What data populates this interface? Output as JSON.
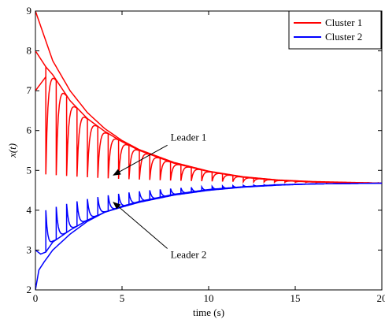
{
  "chart_data": {
    "type": "line",
    "xlabel": "time (s)",
    "ylabel": "x(t)",
    "xlim": [
      0,
      20
    ],
    "ylim": [
      2,
      9
    ],
    "xticks": [
      0,
      5,
      10,
      15,
      20
    ],
    "xtick_labels": [
      "0",
      "5",
      "10",
      "15",
      "20"
    ],
    "yticks": [
      2,
      3,
      4,
      5,
      6,
      7,
      8,
      9
    ],
    "ytick_labels": [
      "2",
      "3",
      "4",
      "5",
      "6",
      "7",
      "8",
      "9"
    ],
    "grid": false,
    "legend_position": "top-right",
    "series": [
      {
        "name": "Cluster 1",
        "color": "#ff0000"
      },
      {
        "name": "Cluster 2",
        "color": "#0000ff"
      }
    ],
    "consensus_value": 4.68,
    "reset_period": 0.6,
    "cluster1_envelopes": [
      {
        "x": [
          0,
          1,
          2,
          3,
          4,
          5,
          6,
          8,
          10,
          12,
          14,
          16,
          20
        ],
        "y": [
          9.0,
          7.75,
          7.0,
          6.45,
          6.05,
          5.75,
          5.52,
          5.2,
          4.98,
          4.84,
          4.76,
          4.72,
          4.68
        ]
      },
      {
        "x": [
          0,
          0.6,
          1,
          2,
          3,
          4,
          5,
          6,
          8,
          10,
          12,
          14,
          16,
          20
        ],
        "y": [
          8.0,
          7.6,
          7.4,
          6.75,
          6.3,
          5.98,
          5.72,
          5.5,
          5.18,
          4.97,
          4.83,
          4.75,
          4.71,
          4.68
        ]
      },
      {
        "x": [
          0,
          0.6
        ],
        "y": [
          7.0,
          7.35
        ]
      }
    ],
    "cluster2_envelopes": [
      {
        "x": [
          0,
          0.3,
          0.6,
          1,
          2,
          3,
          4,
          5,
          6,
          8,
          10,
          12,
          14,
          16,
          20
        ],
        "y": [
          3.0,
          2.9,
          2.95,
          3.2,
          3.5,
          3.75,
          3.95,
          4.08,
          4.2,
          4.38,
          4.5,
          4.58,
          4.63,
          4.66,
          4.68
        ]
      },
      {
        "x": [
          0,
          0.2,
          0.5,
          1,
          2,
          3,
          4,
          5,
          6,
          8,
          10,
          12,
          14,
          16,
          20
        ],
        "y": [
          2.0,
          2.5,
          2.7,
          3.0,
          3.4,
          3.72,
          3.95,
          4.1,
          4.22,
          4.4,
          4.52,
          4.59,
          4.64,
          4.66,
          4.68
        ]
      }
    ],
    "annotations": [
      {
        "text": "Leader 1",
        "label_x": 7.8,
        "label_y": 5.75,
        "arrow_to_x": 4.5,
        "arrow_to_y": 4.88
      },
      {
        "text": "Leader 2",
        "label_x": 7.8,
        "label_y": 2.8,
        "arrow_to_x": 4.5,
        "arrow_to_y": 4.2
      }
    ]
  }
}
